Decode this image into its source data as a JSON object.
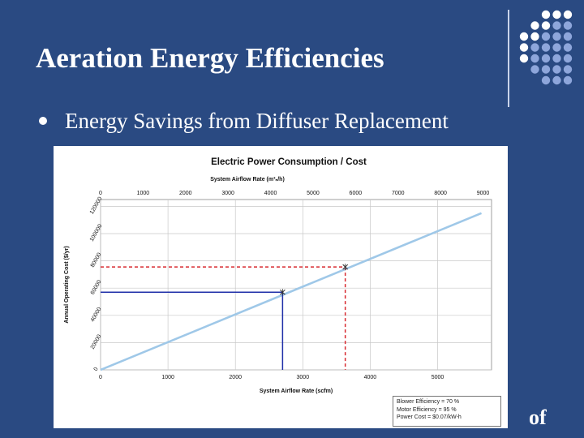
{
  "slide": {
    "title": "Aeration Energy Efficiencies",
    "bullet": "Energy Savings from Diffuser Replacement",
    "logo_fragment": "of",
    "background_color": "#2a4a82"
  },
  "chart_data": {
    "type": "line",
    "title": "Electric Power Consumption / Cost",
    "xlabel": "System Airflow Rate (scfm)",
    "x2label": "System Airflow Rate (m³ₙ/h)",
    "ylabel": "Annual Operating Cost ($/yr)",
    "xlim": [
      0,
      5800
    ],
    "ylim": [
      0,
      125000
    ],
    "x2lim": [
      0,
      9200
    ],
    "xticks": [
      0,
      1000,
      2000,
      3000,
      4000,
      5000
    ],
    "x2ticks": [
      0,
      1000,
      2000,
      3000,
      4000,
      5000,
      6000,
      7000,
      8000,
      9000
    ],
    "yticks": [
      0,
      20000,
      40000,
      60000,
      80000,
      100000,
      120000
    ],
    "grid": true,
    "series": [
      {
        "x": [
          0,
          5650
        ],
        "y": [
          0,
          115000
        ],
        "color": "#9fc8e8"
      }
    ],
    "markers": [
      {
        "x": 2700,
        "y": 57000,
        "color": "#1f2fa8",
        "style": "solid"
      },
      {
        "x": 3630,
        "y": 75500,
        "color": "#d8292f",
        "style": "dashed"
      }
    ],
    "annotation_lines": [
      "Blower Efficiency = 70 %",
      "Motor Efficiency = 95 %",
      "Power Cost = $0.07/kW-h"
    ],
    "legend_position": "bottom-right"
  }
}
